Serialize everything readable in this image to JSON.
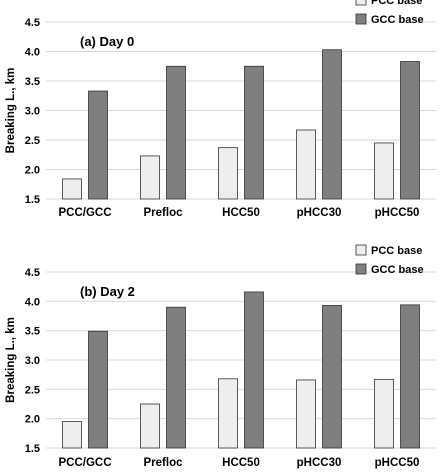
{
  "colors": {
    "pcc": "#eeeeee",
    "gcc": "#7f7f7f",
    "stroke": "#333333",
    "grid": "#d9d9d9",
    "text": "#000000"
  },
  "chart_data": [
    {
      "type": "bar",
      "title": "(a) Day 0",
      "ylabel": "Breaking L., km",
      "xlabel": "",
      "ylim": [
        1.5,
        4.5
      ],
      "yticks": [
        "1.5",
        "2.0",
        "2.5",
        "3.0",
        "3.5",
        "4.0",
        "4.5"
      ],
      "grid": true,
      "legend_position": "top-right",
      "categories": [
        "PCC/GCC",
        "Prefloc",
        "HCC50",
        "pHCC30",
        "pHCC50"
      ],
      "series": [
        {
          "name": "PCC base",
          "values": [
            1.84,
            2.23,
            2.37,
            2.67,
            2.45
          ]
        },
        {
          "name": "GCC base",
          "values": [
            3.33,
            3.75,
            3.75,
            4.03,
            3.83
          ]
        }
      ]
    },
    {
      "type": "bar",
      "title": "(b) Day 2",
      "ylabel": "Breaking L., km",
      "xlabel": "",
      "ylim": [
        1.5,
        4.5
      ],
      "yticks": [
        "1.5",
        "2.0",
        "2.5",
        "3.0",
        "3.5",
        "4.0",
        "4.5"
      ],
      "grid": true,
      "legend_position": "top-right",
      "categories": [
        "PCC/GCC",
        "Prefloc",
        "HCC50",
        "pHCC30",
        "pHCC50"
      ],
      "series": [
        {
          "name": "PCC base",
          "values": [
            1.95,
            2.25,
            2.68,
            2.66,
            2.67
          ]
        },
        {
          "name": "GCC base",
          "values": [
            3.49,
            3.9,
            4.16,
            3.93,
            3.94
          ]
        }
      ]
    }
  ]
}
